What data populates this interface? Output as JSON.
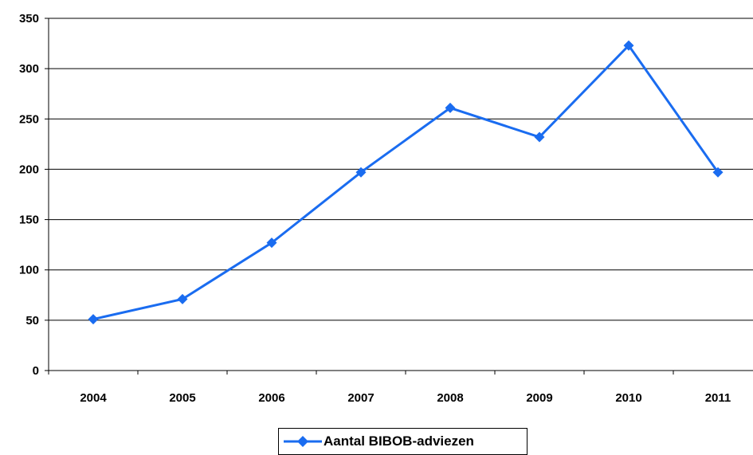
{
  "chart_data": {
    "type": "line",
    "categories": [
      "2004",
      "2005",
      "2006",
      "2007",
      "2008",
      "2009",
      "2010",
      "2011"
    ],
    "series": [
      {
        "name": "Aantal BIBOB-adviezen",
        "values": [
          51,
          71,
          127,
          197,
          261,
          232,
          323,
          197
        ],
        "color": "#1a6cf0"
      }
    ],
    "ylim": [
      0,
      350
    ],
    "yticks": [
      "0",
      "50",
      "100",
      "150",
      "200",
      "250",
      "300",
      "350"
    ],
    "grid": true,
    "legend_position": "bottom",
    "title": "",
    "xlabel": "",
    "ylabel": ""
  }
}
